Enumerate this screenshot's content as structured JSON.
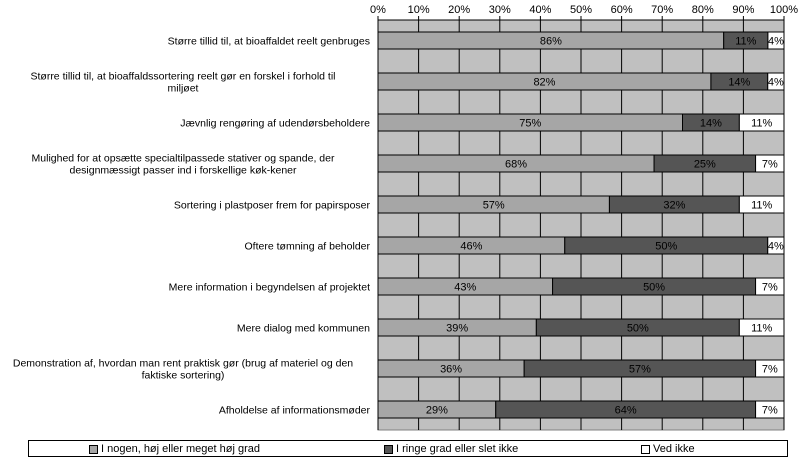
{
  "chart_data": {
    "type": "bar",
    "orientation": "horizontal",
    "stacked": "percent",
    "categories": [
      "Større tillid til, at bioaffaldet reelt genbruges",
      "Større tillid til, at bioaffaldssortering reelt gør en forskel i forhold til miljøet",
      "Jævnlig rengøring af udendørsbeholdere",
      "Mulighed for at opsætte specialtilpassede stativer og spande, der designmæssigt passer ind i forskellige køk-kener",
      "Sortering i plastposer frem for papirsposer",
      "Oftere tømning af beholder",
      "Mere information i begyndelsen af projektet",
      "Mere dialog med kommunen",
      "Demonstration af, hvordan man rent praktisk gør (brug af materiel og den faktiske sortering)",
      "Afholdelse af informationsmøder"
    ],
    "series": [
      {
        "name": "I nogen, høj eller meget høj grad",
        "color": "#a6a6a6",
        "values": [
          86,
          82,
          75,
          68,
          57,
          46,
          43,
          39,
          36,
          29
        ],
        "labels": [
          "86%",
          "82%",
          "75%",
          "68%",
          "57%",
          "46%",
          "43%",
          "39%",
          "36%",
          "29%"
        ]
      },
      {
        "name": "I ringe grad eller slet ikke",
        "color": "#555555",
        "values": [
          11,
          14,
          14,
          25,
          32,
          50,
          50,
          50,
          57,
          64
        ],
        "labels": [
          "11%",
          "14%",
          "14%",
          "25%",
          "32%",
          "50%",
          "50%",
          "50%",
          "57%",
          "64%"
        ]
      },
      {
        "name": "Ved ikke",
        "color": "#ffffff",
        "values": [
          4,
          4,
          11,
          7,
          11,
          4,
          7,
          11,
          7,
          7
        ],
        "labels": [
          "4%",
          "4%",
          "11%",
          "7%",
          "11%",
          "4%",
          "7%",
          "11%",
          "7%",
          "7%"
        ]
      }
    ],
    "x_ticks": [
      "0%",
      "10%",
      "20%",
      "30%",
      "40%",
      "50%",
      "60%",
      "70%",
      "80%",
      "90%",
      "100%"
    ],
    "xlim": [
      0,
      100
    ],
    "grid": true,
    "plot_background": "#c0c0c0",
    "legend_position": "bottom"
  }
}
